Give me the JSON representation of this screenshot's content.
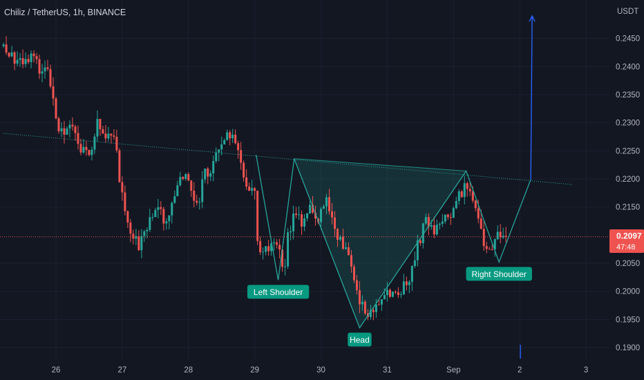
{
  "header": {
    "symbol_title": "Chiliz / TetherUS, 1h, BINANCE"
  },
  "price_axis": {
    "currency": "USDT",
    "ticks": [
      "0.2450",
      "0.2400",
      "0.2350",
      "0.2300",
      "0.2250",
      "0.2200",
      "0.2150",
      "0.2050",
      "0.2000",
      "0.1950",
      "0.1900"
    ],
    "tick_values": [
      0.245,
      0.24,
      0.235,
      0.23,
      0.225,
      0.22,
      0.215,
      0.205,
      0.2,
      0.195,
      0.19
    ]
  },
  "time_axis": {
    "ticks": [
      "26",
      "27",
      "28",
      "29",
      "30",
      "31",
      "Sep",
      "2",
      "3"
    ],
    "tick_hours": [
      0,
      24,
      48,
      72,
      96,
      120,
      144,
      168,
      192
    ]
  },
  "last_price": {
    "value": "0.2097",
    "countdown": "47:48",
    "numeric": 0.2097
  },
  "colors": {
    "background": "#131722",
    "up": "#26a69a",
    "down": "#ef5350",
    "pattern": "#26a69a",
    "arrow": "#2962ff",
    "last_price_line": "#ef5350",
    "label_bg": "#089981"
  },
  "annotations": {
    "left_shoulder": "Left Shoulder",
    "head": "Head",
    "right_shoulder": "Right Shoulder"
  },
  "chart_data": {
    "type": "candlestick",
    "title": "Chiliz / TetherUS, 1h, BINANCE",
    "interval": "1h",
    "x_unit": "hours since Aug 26 00:00",
    "x_range": [
      -19,
      214
    ],
    "ylim": [
      0.1872,
      0.2507
    ],
    "close_path": [
      [
        -19,
        0.2436
      ],
      [
        -14,
        0.2405
      ],
      [
        -9,
        0.2413
      ],
      [
        -6,
        0.2398
      ],
      [
        -3,
        0.2405
      ],
      [
        0,
        0.23
      ],
      [
        3,
        0.2286
      ],
      [
        6,
        0.2294
      ],
      [
        9,
        0.2258
      ],
      [
        12,
        0.2243
      ],
      [
        15,
        0.2302
      ],
      [
        18,
        0.2281
      ],
      [
        21,
        0.2284
      ],
      [
        24,
        0.2165
      ],
      [
        27,
        0.211
      ],
      [
        30,
        0.2081
      ],
      [
        33,
        0.2111
      ],
      [
        36,
        0.2153
      ],
      [
        39,
        0.2127
      ],
      [
        42,
        0.2148
      ],
      [
        45,
        0.2201
      ],
      [
        48,
        0.2196
      ],
      [
        51,
        0.2148
      ],
      [
        54,
        0.221
      ],
      [
        57,
        0.2221
      ],
      [
        60,
        0.2271
      ],
      [
        63,
        0.2281
      ],
      [
        66,
        0.2245
      ],
      [
        69,
        0.2193
      ],
      [
        72,
        0.2179
      ],
      [
        73,
        0.2086
      ],
      [
        76,
        0.207
      ],
      [
        79,
        0.2083
      ],
      [
        81,
        0.2068
      ],
      [
        83,
        0.204
      ],
      [
        84,
        0.2095
      ],
      [
        86,
        0.2134
      ],
      [
        89,
        0.2124
      ],
      [
        92,
        0.2158
      ],
      [
        95,
        0.2128
      ],
      [
        98,
        0.2163
      ],
      [
        101,
        0.211
      ],
      [
        104,
        0.2083
      ],
      [
        107,
        0.2047
      ],
      [
        110,
        0.1985
      ],
      [
        113,
        0.195
      ],
      [
        116,
        0.198
      ],
      [
        119,
        0.199
      ],
      [
        122,
        0.2005
      ],
      [
        125,
        0.2
      ],
      [
        128,
        0.202
      ],
      [
        131,
        0.208
      ],
      [
        134,
        0.213
      ],
      [
        137,
        0.21
      ],
      [
        140,
        0.213
      ],
      [
        143,
        0.214
      ],
      [
        146,
        0.217
      ],
      [
        149,
        0.219
      ],
      [
        152,
        0.215
      ],
      [
        155,
        0.208
      ],
      [
        158,
        0.207
      ],
      [
        160,
        0.2095
      ],
      [
        163,
        0.2097
      ]
    ],
    "neckline": [
      [
        -19,
        0.2281
      ],
      [
        187,
        0.219
      ]
    ],
    "pattern_points": {
      "right_shoulder_prev_peak": [
        72.5,
        0.2243
      ],
      "left_shoulder": [
        80.5,
        0.202
      ],
      "neck_left": [
        86.3,
        0.2236
      ],
      "head": [
        110,
        0.1935
      ],
      "neck_right": [
        148.6,
        0.2214
      ],
      "right_shoulder": [
        160.5,
        0.2052
      ],
      "breakout": [
        172,
        0.2199
      ]
    },
    "target": [
      [
        172,
        0.2199
      ],
      [
        172.5,
        0.249
      ]
    ],
    "last_price": 0.2097
  }
}
